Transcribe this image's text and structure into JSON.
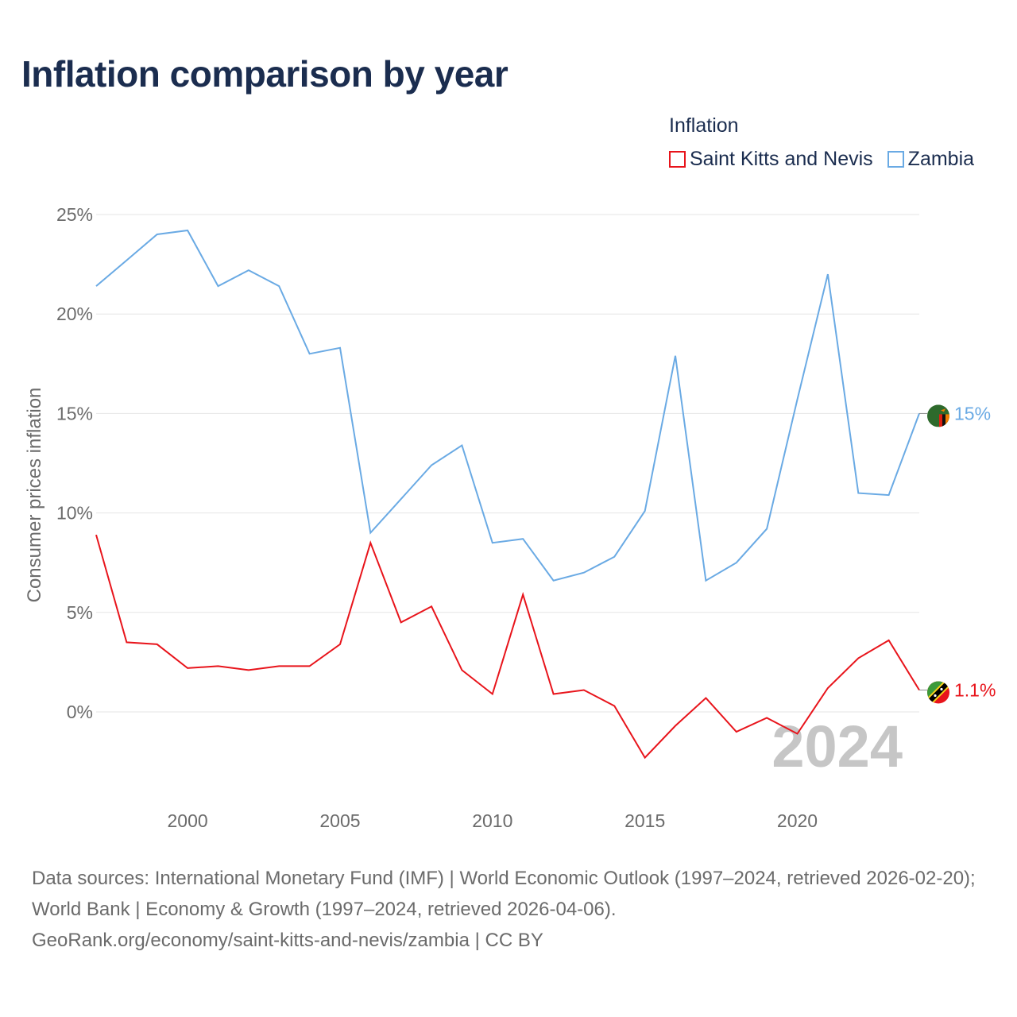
{
  "title": "Inflation comparison by year",
  "legend": {
    "title": "Inflation",
    "items": [
      {
        "label": "Saint Kitts and Nevis",
        "color": "#e8141b"
      },
      {
        "label": "Zambia",
        "color": "#6aaae4"
      }
    ]
  },
  "chart_data": {
    "type": "line",
    "ylabel": "Consumer prices inflation",
    "xlabel": "",
    "x": [
      1997,
      1998,
      1999,
      2000,
      2001,
      2002,
      2003,
      2004,
      2005,
      2006,
      2007,
      2008,
      2009,
      2010,
      2011,
      2012,
      2013,
      2014,
      2015,
      2016,
      2017,
      2018,
      2019,
      2020,
      2021,
      2022,
      2023,
      2024
    ],
    "xlim": [
      1997,
      2024
    ],
    "ylim": [
      -4,
      26
    ],
    "xticks": [
      2000,
      2005,
      2010,
      2015,
      2020
    ],
    "yticks": [
      0,
      5,
      10,
      15,
      20,
      25
    ],
    "ytick_labels": [
      "0%",
      "5%",
      "10%",
      "15%",
      "20%",
      "25%"
    ],
    "grid": true,
    "series": [
      {
        "name": "Saint Kitts and Nevis",
        "color": "#e8141b",
        "values": [
          8.9,
          3.5,
          3.4,
          2.2,
          2.3,
          2.1,
          2.3,
          2.3,
          3.4,
          8.5,
          4.5,
          5.3,
          2.1,
          0.9,
          5.9,
          0.9,
          1.1,
          0.3,
          -2.3,
          -0.7,
          0.7,
          -1.0,
          -0.3,
          -1.1,
          1.2,
          2.7,
          3.6,
          1.1
        ],
        "end_label": "1.1%",
        "flag": "saint-kitts-and-nevis-flag-icon"
      },
      {
        "name": "Zambia",
        "color": "#6aaae4",
        "values": [
          21.4,
          22.7,
          24.0,
          24.2,
          21.4,
          22.2,
          21.4,
          18.0,
          18.3,
          9.0,
          10.7,
          12.4,
          13.4,
          8.5,
          8.7,
          6.6,
          7.0,
          7.8,
          10.1,
          17.9,
          6.6,
          7.5,
          9.2,
          15.7,
          22.0,
          11.0,
          10.9,
          15.0
        ],
        "end_label": "15%",
        "flag": "zambia-flag-icon"
      }
    ],
    "year_label": "2024"
  },
  "footer": {
    "line1": "Data sources: International Monetary Fund (IMF) | World Economic Outlook (1997–2024, retrieved 2026-02-20); World Bank | Economy & Growth (1997–2024, retrieved 2026-04-06).",
    "line2": "GeoRank.org/economy/saint-kitts-and-nevis/zambia | CC BY"
  }
}
